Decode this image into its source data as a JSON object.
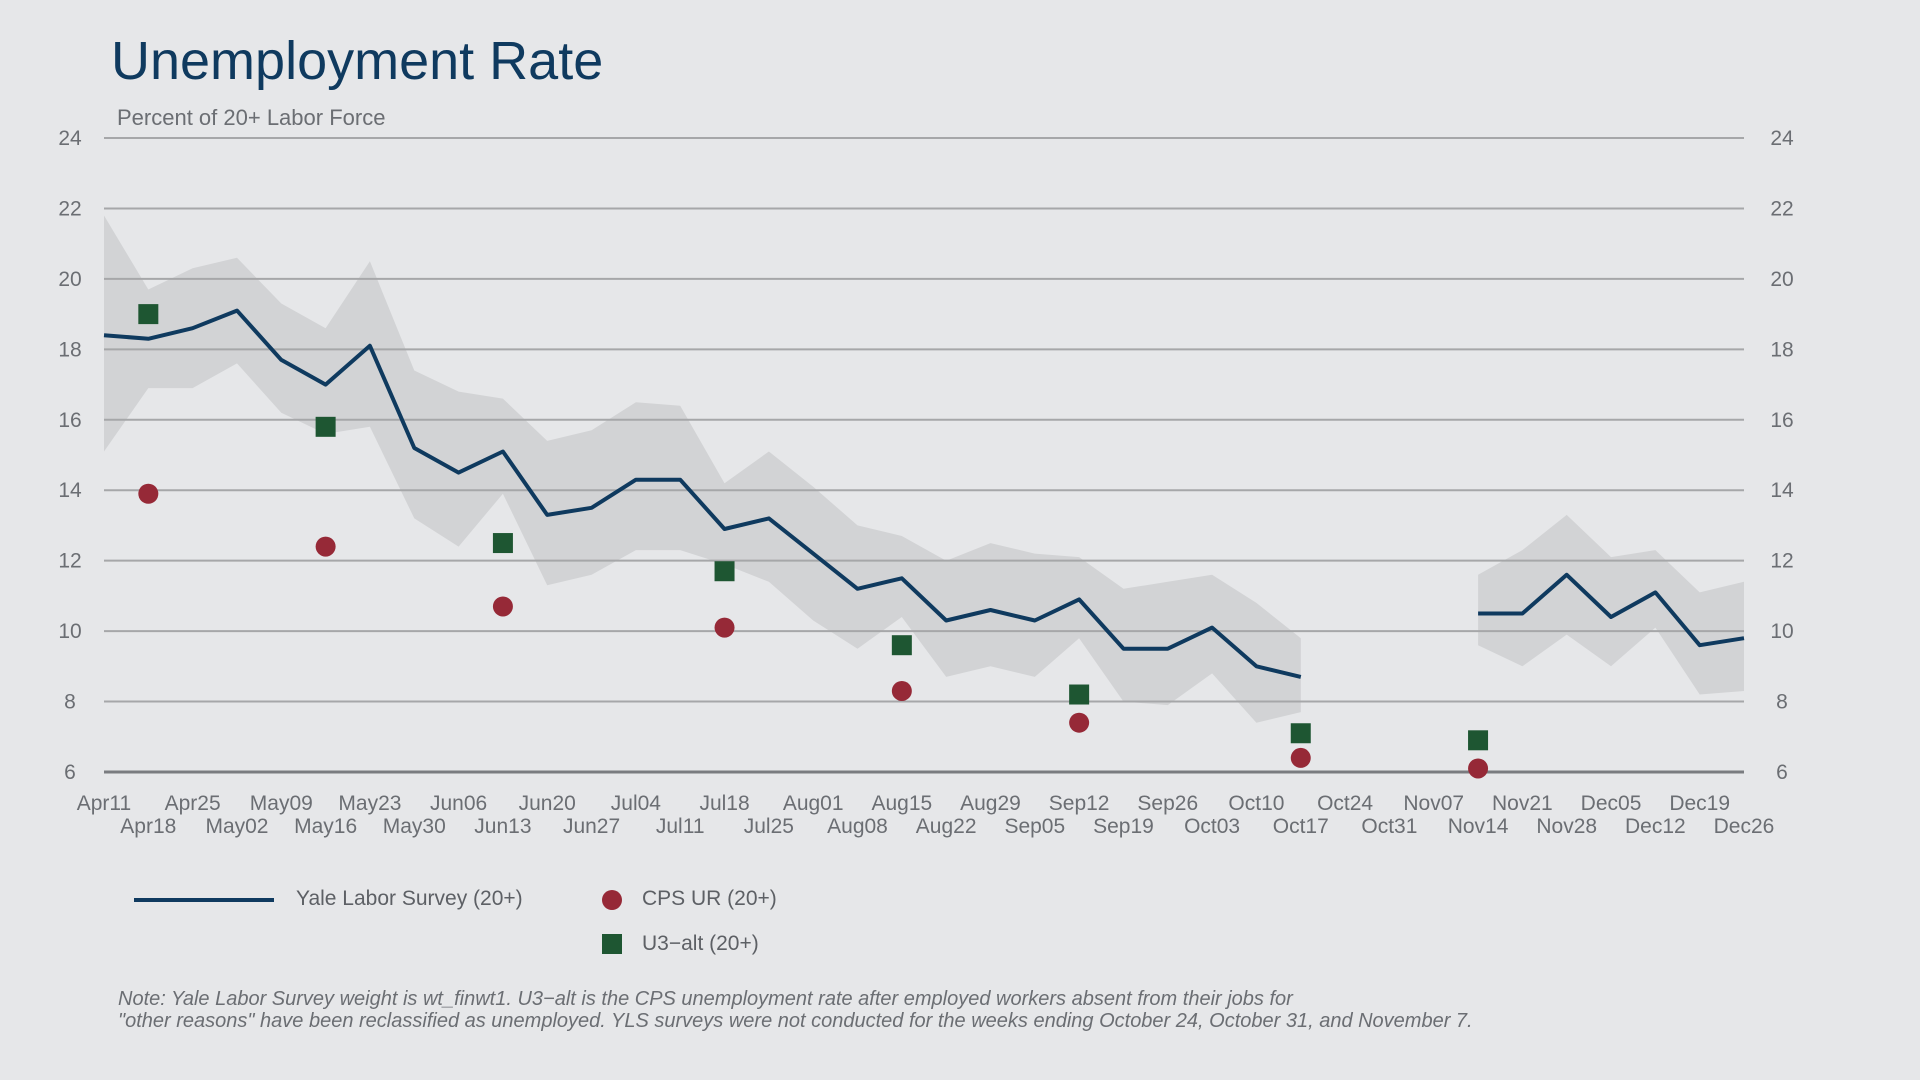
{
  "title": "Unemployment Rate",
  "subtitle": "Percent of 20+ Labor Force",
  "note_line1": "Note: Yale Labor Survey weight is wt_finwt1. U3−alt is the CPS unemployment rate after employed workers absent from their jobs for",
  "note_line2": "\"other reasons\" have been reclassified as unemployed. YLS surveys were not conducted for the weeks ending October 24, October 31, and November 7.",
  "colors": {
    "background": "#e6e7e9",
    "yls_line": "#0f3a5f",
    "band": "#d2d3d5",
    "cps": "#962937",
    "u3alt": "#1e5632",
    "grid": "#a6a7a9"
  },
  "chart_data": {
    "type": "line",
    "ylim": [
      6,
      24
    ],
    "yticks": [
      6,
      8,
      10,
      12,
      14,
      16,
      18,
      20,
      22,
      24
    ],
    "x_ticks_top": [
      "Apr11",
      "Apr25",
      "May09",
      "May23",
      "Jun06",
      "Jun20",
      "Jul04",
      "Jul18",
      "Aug01",
      "Aug15",
      "Aug29",
      "Sep12",
      "Sep26",
      "Oct10",
      "Oct24",
      "Nov07",
      "Nov21",
      "Dec05",
      "Dec19"
    ],
    "x_ticks_bottom": [
      "Apr18",
      "May02",
      "May16",
      "May30",
      "Jun13",
      "Jun27",
      "Jul11",
      "Jul25",
      "Aug08",
      "Aug22",
      "Sep05",
      "Sep19",
      "Oct03",
      "Oct17",
      "Oct31",
      "Nov14",
      "Nov28",
      "Dec12",
      "Dec26"
    ],
    "weeks": [
      "Apr11",
      "Apr18",
      "Apr25",
      "May02",
      "May09",
      "May16",
      "May23",
      "May30",
      "Jun06",
      "Jun13",
      "Jun20",
      "Jun27",
      "Jul04",
      "Jul11",
      "Jul18",
      "Jul25",
      "Aug01",
      "Aug08",
      "Aug15",
      "Aug22",
      "Aug29",
      "Sep05",
      "Sep12",
      "Sep19",
      "Sep26",
      "Oct03",
      "Oct10",
      "Oct17",
      "Oct24",
      "Oct31",
      "Nov07",
      "Nov14",
      "Nov21",
      "Nov28",
      "Dec05",
      "Dec12",
      "Dec19",
      "Dec26"
    ],
    "series": [
      {
        "name": "Yale Labor Survey (20+)",
        "style": "line",
        "values": [
          18.4,
          18.3,
          18.6,
          19.1,
          17.7,
          17.0,
          18.1,
          15.2,
          14.5,
          15.1,
          13.3,
          13.5,
          14.3,
          14.3,
          12.9,
          13.2,
          12.2,
          11.2,
          11.5,
          10.3,
          10.6,
          10.3,
          10.9,
          9.5,
          9.5,
          10.1,
          9.0,
          8.7,
          null,
          null,
          null,
          10.5,
          10.5,
          11.6,
          10.4,
          11.1,
          9.6,
          9.8
        ],
        "band_upper": [
          21.8,
          19.7,
          20.3,
          20.6,
          19.3,
          18.6,
          20.5,
          17.4,
          16.8,
          16.6,
          15.4,
          15.7,
          16.5,
          16.4,
          14.2,
          15.1,
          14.1,
          13.0,
          12.7,
          12.0,
          12.5,
          12.2,
          12.1,
          11.2,
          11.4,
          11.6,
          10.8,
          9.8,
          null,
          null,
          null,
          11.6,
          12.3,
          13.3,
          12.1,
          12.3,
          11.1,
          11.4
        ],
        "band_lower": [
          15.1,
          16.9,
          16.9,
          17.6,
          16.2,
          15.6,
          15.8,
          13.2,
          12.4,
          13.9,
          11.3,
          11.6,
          12.3,
          12.3,
          11.9,
          11.4,
          10.3,
          9.5,
          10.4,
          8.7,
          9.0,
          8.7,
          9.8,
          8.0,
          7.9,
          8.8,
          7.4,
          7.7,
          null,
          null,
          null,
          9.6,
          9.0,
          9.9,
          9.0,
          10.1,
          8.2,
          8.3
        ]
      },
      {
        "name": "CPS UR (20+)",
        "style": "circle",
        "x": [
          "Apr18",
          "May16",
          "Jun13",
          "Jul18",
          "Aug15",
          "Sep12",
          "Oct17",
          "Nov14"
        ],
        "values": [
          13.9,
          12.4,
          10.7,
          10.1,
          8.3,
          7.4,
          6.4,
          6.1
        ]
      },
      {
        "name": "U3−alt (20+)",
        "style": "square",
        "x": [
          "Apr18",
          "May16",
          "Jun13",
          "Jul18",
          "Aug15",
          "Sep12",
          "Oct17",
          "Nov14"
        ],
        "values": [
          19.0,
          15.8,
          12.5,
          11.7,
          9.6,
          8.2,
          7.1,
          6.9
        ]
      }
    ],
    "grid": true,
    "legend_position": "bottom-left"
  }
}
